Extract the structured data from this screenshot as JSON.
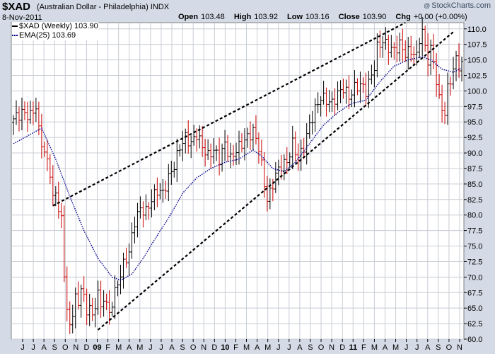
{
  "header": {
    "ticker": "$XAD",
    "subtitle": "(Australian Dollar - Philadelphia) INDX",
    "date": "8-Nov-2011",
    "watermark": "StockCharts.com",
    "watermark_symbol": "@",
    "open_label": "Open",
    "open": "103.48",
    "high_label": "High",
    "high": "103.92",
    "low_label": "Low",
    "low": "103.16",
    "close_label": "Close",
    "close": "103.90",
    "chg_label": "Chg",
    "chg": "+0.00 (+0.00%)"
  },
  "legend": {
    "price": "$XAD (Weekly) 103.90",
    "ema": "EMA(25) 103.69"
  },
  "colors": {
    "background": "#ffffff",
    "frame": "#d4dbe6",
    "grid": "#c8ccd4",
    "up": "#000000",
    "down": "#cc0000",
    "ema": "#00008b",
    "trendline": "#000000"
  },
  "chart_data": {
    "type": "ohlc",
    "title": "$XAD (Australian Dollar - Philadelphia) INDX",
    "ylim": [
      60,
      111
    ],
    "y_ticks": [
      60,
      62.5,
      65,
      67.5,
      70,
      72.5,
      75,
      77.5,
      80,
      82.5,
      85,
      87.5,
      90,
      92.5,
      95,
      97.5,
      100,
      102.5,
      105,
      107.5,
      110
    ],
    "y_tick_labels": [
      "60.0",
      "62.5",
      "65.0",
      "67.5",
      "70.0",
      "72.5",
      "75.0",
      "77.5",
      "80.0",
      "82.5",
      "85.0",
      "87.5",
      "90.0",
      "92.5",
      "95.0",
      "97.5",
      "100.0",
      "102.5",
      "105.0",
      "107.5",
      "110.0"
    ],
    "x_ticks": [
      "J",
      "J",
      "A",
      "S",
      "O",
      "N",
      "D",
      "09",
      "F",
      "M",
      "A",
      "M",
      "J",
      "J",
      "A",
      "S",
      "O",
      "N",
      "D",
      "10",
      "F",
      "M",
      "A",
      "M",
      "J",
      "J",
      "A",
      "S",
      "O",
      "N",
      "D",
      "11",
      "F",
      "M",
      "A",
      "M",
      "J",
      "J",
      "A",
      "S",
      "O",
      "N"
    ],
    "x_tick_bold": [
      false,
      false,
      false,
      false,
      false,
      false,
      false,
      true,
      false,
      false,
      false,
      false,
      false,
      false,
      false,
      false,
      false,
      false,
      false,
      true,
      false,
      false,
      false,
      false,
      false,
      false,
      false,
      false,
      false,
      false,
      false,
      true,
      false,
      false,
      false,
      false,
      false,
      false,
      false,
      false,
      false,
      false
    ],
    "close_anchors": [
      [
        0,
        95.5
      ],
      [
        3,
        96.5
      ],
      [
        6,
        96.0
      ],
      [
        8,
        97.5
      ],
      [
        9,
        93.5
      ],
      [
        11,
        90.0
      ],
      [
        12,
        88.5
      ],
      [
        13,
        87.0
      ],
      [
        14,
        82.5
      ],
      [
        15,
        83.5
      ],
      [
        17,
        79.0
      ],
      [
        18,
        70.5
      ],
      [
        19,
        65.0
      ],
      [
        20,
        61.5
      ],
      [
        21,
        64.5
      ],
      [
        22,
        67.0
      ],
      [
        23,
        65.0
      ],
      [
        24,
        69.0
      ],
      [
        26,
        64.0
      ],
      [
        27,
        66.0
      ],
      [
        28,
        63.0
      ],
      [
        30,
        68.0
      ],
      [
        31,
        64.5
      ],
      [
        32,
        67.0
      ],
      [
        34,
        64.0
      ],
      [
        35,
        66.0
      ],
      [
        37,
        69.0
      ],
      [
        39,
        72.0
      ],
      [
        41,
        74.0
      ],
      [
        43,
        79.0
      ],
      [
        45,
        81.0
      ],
      [
        47,
        80.5
      ],
      [
        49,
        82.5
      ],
      [
        51,
        84.0
      ],
      [
        53,
        83.5
      ],
      [
        55,
        86.0
      ],
      [
        57,
        88.0
      ],
      [
        59,
        91.0
      ],
      [
        61,
        92.5
      ],
      [
        63,
        91.5
      ],
      [
        65,
        93.0
      ],
      [
        67,
        91.0
      ],
      [
        69,
        89.5
      ],
      [
        71,
        90.5
      ],
      [
        73,
        89.0
      ],
      [
        75,
        91.5
      ],
      [
        77,
        89.0
      ],
      [
        79,
        90.5
      ],
      [
        81,
        91.5
      ],
      [
        83,
        92.5
      ],
      [
        85,
        93.5
      ],
      [
        87,
        91.0
      ],
      [
        88,
        88.0
      ],
      [
        89,
        85.0
      ],
      [
        90,
        82.5
      ],
      [
        91,
        83.5
      ],
      [
        93,
        86.5
      ],
      [
        95,
        88.0
      ],
      [
        97,
        88.5
      ],
      [
        99,
        91.5
      ],
      [
        101,
        89.0
      ],
      [
        103,
        91.0
      ],
      [
        105,
        94.5
      ],
      [
        107,
        97.0
      ],
      [
        109,
        99.0
      ],
      [
        111,
        98.5
      ],
      [
        113,
        98.0
      ],
      [
        115,
        99.5
      ],
      [
        117,
        100.5
      ],
      [
        119,
        99.0
      ],
      [
        121,
        100.5
      ],
      [
        123,
        101.0
      ],
      [
        125,
        100.0
      ],
      [
        127,
        102.5
      ],
      [
        128,
        104.0
      ],
      [
        129,
        107.0
      ],
      [
        131,
        108.0
      ],
      [
        133,
        107.0
      ],
      [
        135,
        106.5
      ],
      [
        137,
        107.5
      ],
      [
        139,
        106.0
      ],
      [
        141,
        106.5
      ],
      [
        143,
        105.5
      ],
      [
        144,
        108.5
      ],
      [
        145,
        109.5
      ],
      [
        146,
        107.0
      ],
      [
        147,
        105.0
      ],
      [
        148,
        106.5
      ],
      [
        149,
        105.0
      ],
      [
        150,
        101.5
      ],
      [
        151,
        98.5
      ],
      [
        152,
        97.5
      ],
      [
        153,
        96.0
      ],
      [
        154,
        100.5
      ],
      [
        155,
        102.0
      ],
      [
        156,
        103.0
      ],
      [
        157,
        105.5
      ],
      [
        158,
        104.0
      ],
      [
        159,
        103.9
      ]
    ],
    "ema_anchors": [
      [
        0,
        91.5
      ],
      [
        10,
        94.0
      ],
      [
        15,
        89.0
      ],
      [
        20,
        83.0
      ],
      [
        25,
        77.5
      ],
      [
        30,
        73.0
      ],
      [
        35,
        70.0
      ],
      [
        38,
        69.5
      ],
      [
        42,
        70.5
      ],
      [
        46,
        73.0
      ],
      [
        50,
        76.0
      ],
      [
        55,
        79.5
      ],
      [
        60,
        83.5
      ],
      [
        65,
        86.0
      ],
      [
        70,
        87.5
      ],
      [
        75,
        88.5
      ],
      [
        80,
        89.0
      ],
      [
        85,
        90.5
      ],
      [
        88,
        89.5
      ],
      [
        92,
        87.5
      ],
      [
        96,
        87.0
      ],
      [
        100,
        88.5
      ],
      [
        105,
        91.5
      ],
      [
        110,
        94.5
      ],
      [
        115,
        96.5
      ],
      [
        120,
        98.0
      ],
      [
        125,
        98.5
      ],
      [
        130,
        101.5
      ],
      [
        135,
        104.0
      ],
      [
        140,
        105.0
      ],
      [
        145,
        105.5
      ],
      [
        148,
        105.0
      ],
      [
        152,
        103.5
      ],
      [
        156,
        103.0
      ],
      [
        159,
        103.69
      ]
    ],
    "trendlines": [
      {
        "from": [
          14,
          81.5
        ],
        "to": [
          139,
          111.0
        ]
      },
      {
        "from": [
          30,
          61.5
        ],
        "to": [
          156,
          109.5
        ]
      }
    ],
    "num_weeks": 160,
    "series": [
      {
        "name": "$XAD (Weekly)",
        "last": 103.9
      },
      {
        "name": "EMA(25)",
        "last": 103.69
      }
    ]
  }
}
